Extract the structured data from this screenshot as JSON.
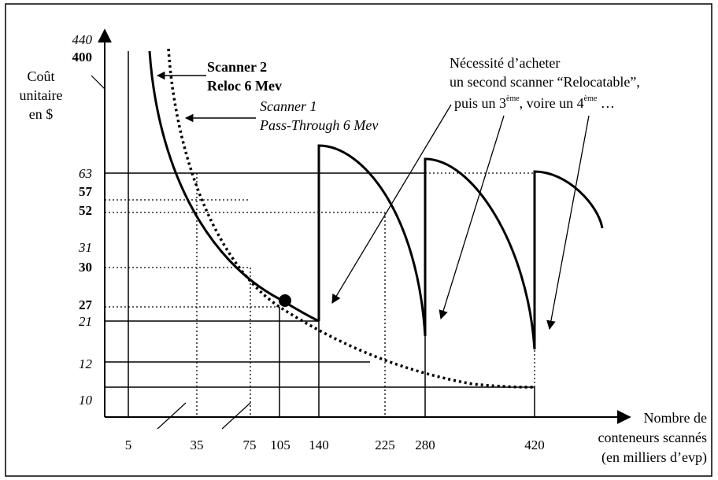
{
  "y_axis": {
    "title_lines": [
      "Coût",
      "unitaire",
      "en $"
    ],
    "ticks": [
      {
        "value": "440",
        "style": "italic"
      },
      {
        "value": "400",
        "style": "bold"
      },
      {
        "value": "63",
        "style": "italic"
      },
      {
        "value": "57",
        "style": "bold"
      },
      {
        "value": "52",
        "style": "bold"
      },
      {
        "value": "31",
        "style": "italic"
      },
      {
        "value": "30",
        "style": "bold"
      },
      {
        "value": "27",
        "style": "bold"
      },
      {
        "value": "21",
        "style": "italic"
      },
      {
        "value": "12",
        "style": "italic"
      },
      {
        "value": "10",
        "style": "italic"
      }
    ]
  },
  "x_axis": {
    "title_lines": [
      "Nombre de",
      "conteneurs scannés",
      "(en milliers d’evp)"
    ],
    "ticks": [
      "5",
      "35",
      "75",
      "105",
      "140",
      "225",
      "280",
      "420"
    ]
  },
  "labels": {
    "scanner2_line1": "Scanner 2",
    "scanner2_line2": "Reloc 6 Mev",
    "scanner1_line1": "Scanner 1",
    "scanner1_line2": "Pass-Through 6 Mev",
    "note_line1": "Nécessité d’acheter",
    "note_line2": "un second scanner “Relocatable”,",
    "note_line3_a": "puis un 3",
    "note_line3_sup1": "ème",
    "note_line3_b": ", voire un 4",
    "note_line3_sup2": "ème",
    "note_line3_c": " …"
  },
  "curves": [
    {
      "name": "Scanner 2 Reloc 6 Mev",
      "style": "solid"
    },
    {
      "name": "Scanner 1 Pass-Through 6 Mev",
      "style": "dotted"
    }
  ],
  "colors": {
    "ink": "#000000",
    "background": "#ffffff"
  }
}
